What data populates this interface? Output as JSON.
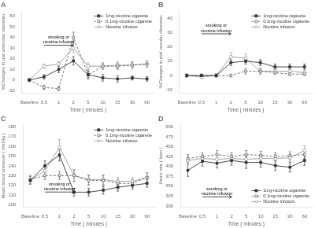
{
  "chart_data": [
    {
      "type": "line",
      "title": "A",
      "x_label": "Time ( minutes )",
      "y_label": "%Changes in pial arteriolar diameter",
      "categories": [
        "Baseline",
        "0.5",
        "1",
        "2",
        "5",
        "10",
        "15",
        "30",
        "60"
      ],
      "series": [
        {
          "name": "1mg-nicotine cigarette",
          "color": "#333333",
          "marker": "square",
          "line_style": "solid",
          "values": [
            0,
            3,
            10,
            18,
            5,
            2,
            1,
            2,
            1
          ],
          "errors": [
            1.5,
            2,
            3,
            4,
            3,
            3,
            3,
            2,
            2
          ]
        },
        {
          "name": "0.1mg-nicotine cigarette",
          "color": "#666666",
          "marker": "open-square",
          "line_style": "dashed",
          "values": [
            0,
            -7,
            -8,
            40,
            5,
            13,
            13,
            14,
            15
          ],
          "errors": [
            1,
            2,
            2,
            5,
            4,
            3,
            3,
            3,
            3
          ]
        },
        {
          "name": "Nicotine infusion",
          "color": "#999999",
          "marker": "open-circle",
          "line_style": "solid",
          "values": [
            0,
            13,
            15,
            30,
            13,
            13,
            14,
            14,
            15
          ],
          "errors": [
            1,
            2,
            2,
            4,
            3,
            3,
            3,
            3,
            3
          ]
        }
      ],
      "ylim": [
        -12,
        65
      ],
      "yticks": [
        -10,
        0,
        10,
        20,
        30,
        40,
        50,
        60
      ],
      "grid": false,
      "legend": "upper right",
      "annotations": [
        {
          "text": "smoking or\nnicotine infusion",
          "x_start": "0.5",
          "x_end": "2",
          "y": 32.66
        }
      ]
    },
    {
      "type": "line",
      "title": "B",
      "x_label": "Time ( minutes )",
      "y_label": "%Changes in pial venular diameter",
      "categories": [
        "Baseline",
        "0.5",
        "1",
        "2",
        "5",
        "10",
        "15",
        "30",
        "60"
      ],
      "series": [
        {
          "name": "1mg-nicotine cigarette",
          "color": "#333333",
          "marker": "square",
          "line_style": "solid",
          "values": [
            0,
            0,
            0,
            9,
            10,
            9,
            6,
            6,
            6
          ],
          "errors": [
            1,
            1,
            1,
            2,
            2,
            2,
            2,
            2,
            2
          ]
        },
        {
          "name": "0.1mg-nicotine cigarette",
          "color": "#666666",
          "marker": "open-square",
          "line_style": "dashed",
          "values": [
            0,
            0,
            0,
            0,
            3,
            3,
            2,
            1,
            1
          ],
          "errors": [
            1,
            1,
            1,
            1,
            2,
            2,
            1,
            1,
            1
          ]
        },
        {
          "name": "Nicotine infusion",
          "color": "#999999",
          "marker": "open-circle",
          "line_style": "solid",
          "values": [
            0,
            -1,
            0,
            13,
            12,
            3,
            3,
            3,
            2
          ],
          "errors": [
            1,
            1,
            1,
            3,
            3,
            2,
            2,
            1,
            1
          ]
        }
      ],
      "ylim": [
        -12,
        45
      ],
      "yticks": [
        -10,
        0,
        10,
        20,
        30,
        40
      ],
      "grid": false,
      "legend": "upper right",
      "annotations": [
        {
          "text": "smoking or\nnicotine infusion",
          "x_start": "0.5",
          "x_end": "2",
          "y": 29.04
        }
      ]
    },
    {
      "type": "line",
      "title": "C",
      "x_label": "Time ( minutes )",
      "y_label": "Mean blood pressure ( mmHg )",
      "categories": [
        "Baseline",
        "0.5",
        "1",
        "2",
        "5",
        "10",
        "15",
        "30",
        "60"
      ],
      "series": [
        {
          "name": "1mg-nicotine cigarette",
          "color": "#333333",
          "marker": "square",
          "line_style": "solid",
          "values": [
            125,
            140,
            151,
            113,
            113,
            115,
            118,
            120,
            122
          ],
          "errors": [
            4,
            5,
            6,
            4,
            4,
            4,
            4,
            4,
            4
          ]
        },
        {
          "name": "0.1mg-nicotine cigarette",
          "color": "#666666",
          "marker": "open-square",
          "line_style": "dashed",
          "values": [
            126,
            130,
            130,
            130,
            125,
            125,
            122,
            122,
            128
          ],
          "errors": [
            4,
            4,
            4,
            6,
            5,
            5,
            4,
            4,
            5
          ]
        },
        {
          "name": "Nicotine infusion",
          "color": "#999999",
          "marker": "open-circle",
          "line_style": "solid",
          "values": [
            125,
            135,
            159,
            130,
            126,
            126,
            124,
            124,
            128
          ],
          "errors": [
            4,
            5,
            8,
            6,
            5,
            5,
            4,
            4,
            5
          ]
        }
      ],
      "ylim": [
        98,
        182
      ],
      "yticks": [
        100,
        110,
        120,
        130,
        140,
        150,
        160,
        170,
        180
      ],
      "grid": false,
      "legend": "upper right",
      "annotations": [
        {
          "text": "smoking or\nnicotine infusion",
          "x_start": "0.5",
          "x_end": "2",
          "y": 113.12
        }
      ]
    },
    {
      "type": "line",
      "title": "D",
      "x_label": "Time ( minutes )",
      "y_label": "Heart rate ( bpm )",
      "categories": [
        "Baseline",
        "0.5",
        "1",
        "2",
        "5",
        "10",
        "15",
        "30",
        "60"
      ],
      "series": [
        {
          "name": "1mg-nicotine cigarette",
          "color": "#333333",
          "marker": "square",
          "line_style": "solid",
          "values": [
            390,
            413,
            408,
            415,
            410,
            410,
            402,
            398,
            415
          ],
          "errors": [
            15,
            12,
            12,
            12,
            15,
            12,
            12,
            12,
            12
          ]
        },
        {
          "name": "0.1mg-nicotine cigarette",
          "color": "#666666",
          "marker": "open-square",
          "line_style": "dashed",
          "values": [
            420,
            425,
            430,
            425,
            430,
            428,
            425,
            427,
            430
          ],
          "errors": [
            10,
            10,
            10,
            10,
            10,
            10,
            10,
            10,
            10
          ]
        },
        {
          "name": "Nicotine infusion",
          "color": "#999999",
          "marker": "open-circle",
          "line_style": "solid",
          "values": [
            415,
            420,
            418,
            420,
            418,
            420,
            420,
            422,
            440
          ],
          "errors": [
            10,
            10,
            10,
            10,
            10,
            10,
            10,
            10,
            12
          ]
        }
      ],
      "ylim": [
        298,
        505
      ],
      "yticks": [
        300,
        325,
        350,
        375,
        400,
        425,
        450,
        475,
        500
      ],
      "grid": false,
      "legend": "lower right",
      "annotations": [
        {
          "text": "smoking or\nnicotine infusion",
          "x_start": "0.5",
          "x_end": "2",
          "y": 322.84
        }
      ]
    }
  ]
}
